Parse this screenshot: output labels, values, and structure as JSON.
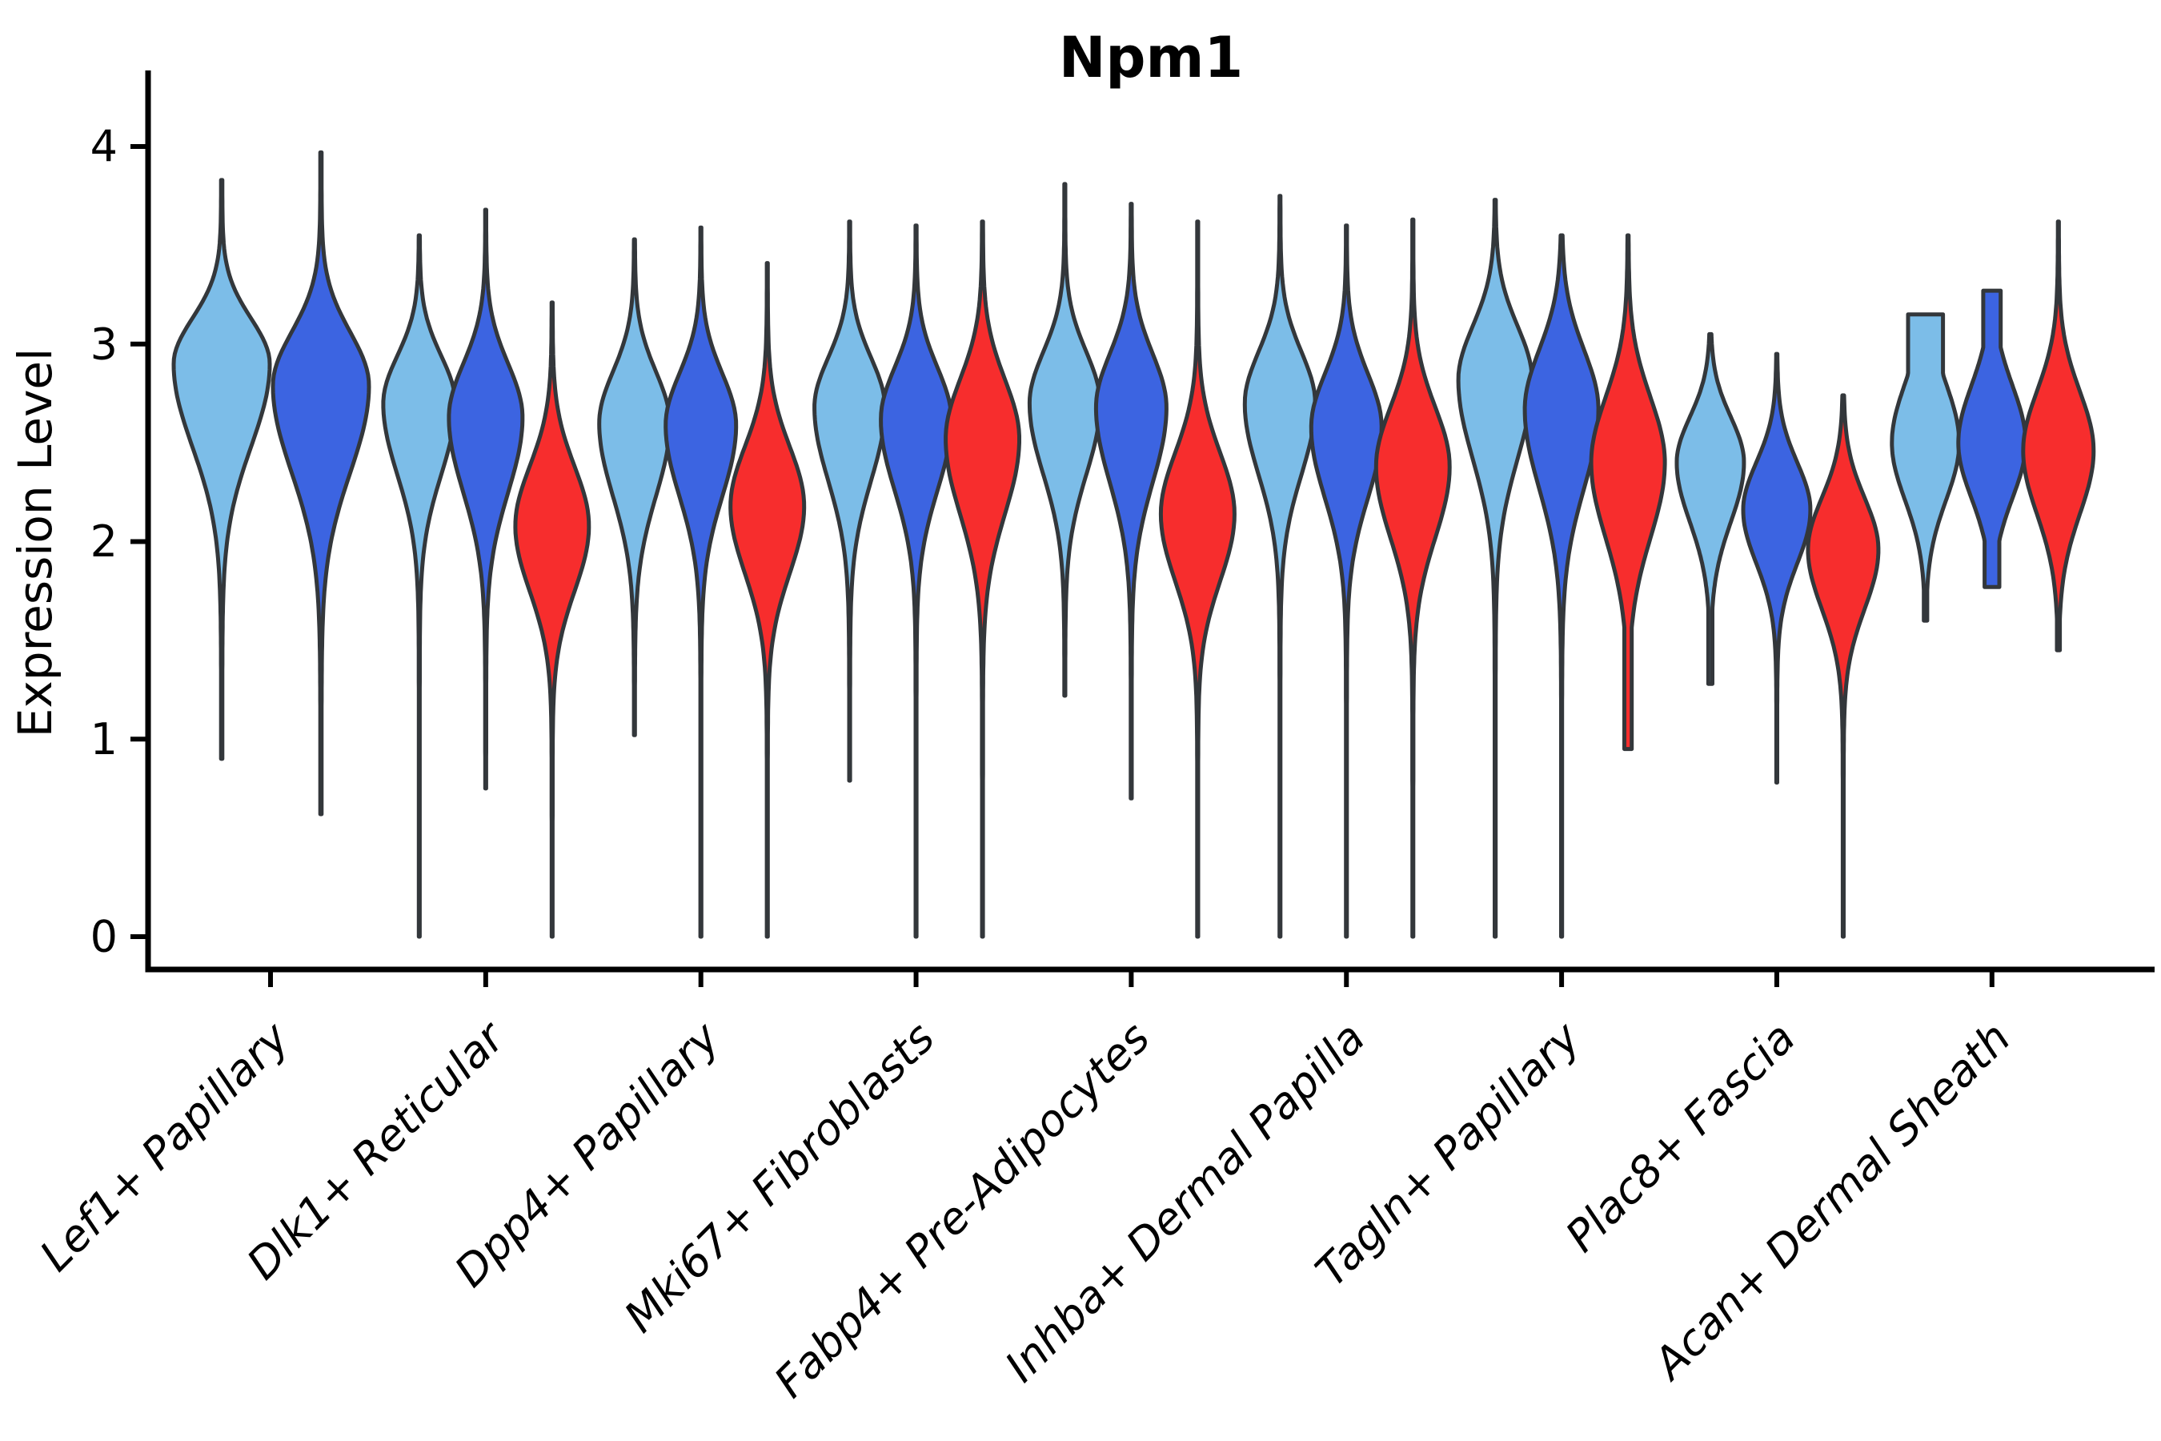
{
  "chart_data": {
    "type": "violin",
    "title": "Npm1",
    "ylabel": "Expression Level",
    "xlabel": "",
    "ylim": [
      0,
      4
    ],
    "y_tick_labels": [
      "0",
      "1",
      "2",
      "3",
      "4"
    ],
    "y_tick_values": [
      0,
      1,
      2,
      3,
      4
    ],
    "categories": [
      "Lef1+ Papillary",
      "Dlk1+ Reticular",
      "Dpp4+ Papillary",
      "Mki67+ Fibroblasts",
      "Fabp4+ Pre-Adipocytes",
      "Inhba+ Dermal Papilla",
      "Tagln+ Papillary",
      "Plac8+ Fascia",
      "Acan+ Dermal Sheath"
    ],
    "series": [
      "light-blue",
      "dark-blue",
      "red"
    ],
    "series_colors": {
      "light-blue": "#7CBDE8",
      "dark-blue": "#3C64E1",
      "red": "#F72D2D"
    },
    "edge_color": "#33373B",
    "axis_color": "#000000",
    "grid": false,
    "legend": "none",
    "x_tick_rotation": 45,
    "violins": [
      {
        "cat": 0,
        "hue": 0,
        "dx": -61,
        "hw": 60,
        "top": 3.83,
        "bottom": 0.9,
        "mode": 2.9,
        "su": 0.23,
        "sd": 0.42
      },
      {
        "cat": 0,
        "hue": 1,
        "dx": 63,
        "hw": 60,
        "top": 3.97,
        "bottom": 0.62,
        "mode": 2.79,
        "su": 0.27,
        "sd": 0.44
      },
      {
        "cat": 1,
        "hue": 0,
        "hw": 45,
        "top": 3.55,
        "bottom": 0.0,
        "mode": 2.7,
        "su": 0.24,
        "sd": 0.36
      },
      {
        "cat": 1,
        "hue": 1,
        "hw": 46,
        "top": 3.68,
        "bottom": 0.75,
        "mode": 2.63,
        "su": 0.27,
        "sd": 0.38
      },
      {
        "cat": 1,
        "hue": 2,
        "hw": 46,
        "top": 3.21,
        "bottom": 0.0,
        "mode": 2.08,
        "su": 0.3,
        "sd": 0.33
      },
      {
        "cat": 2,
        "hue": 0,
        "hw": 44,
        "top": 3.53,
        "bottom": 1.02,
        "mode": 2.6,
        "su": 0.26,
        "sd": 0.37
      },
      {
        "cat": 2,
        "hue": 1,
        "hw": 44,
        "top": 3.59,
        "bottom": 0.0,
        "mode": 2.59,
        "su": 0.26,
        "sd": 0.36
      },
      {
        "cat": 2,
        "hue": 2,
        "hw": 46,
        "top": 3.41,
        "bottom": 0.0,
        "mode": 2.18,
        "su": 0.3,
        "sd": 0.34
      },
      {
        "cat": 3,
        "hue": 0,
        "hw": 44,
        "top": 3.62,
        "bottom": 0.79,
        "mode": 2.68,
        "su": 0.25,
        "sd": 0.37
      },
      {
        "cat": 3,
        "hue": 1,
        "hw": 44,
        "top": 3.6,
        "bottom": 0.0,
        "mode": 2.62,
        "su": 0.26,
        "sd": 0.36
      },
      {
        "cat": 3,
        "hue": 2,
        "hw": 46,
        "top": 3.62,
        "bottom": 0.0,
        "mode": 2.52,
        "su": 0.3,
        "sd": 0.38
      },
      {
        "cat": 4,
        "hue": 0,
        "hw": 44,
        "top": 3.81,
        "bottom": 1.22,
        "mode": 2.7,
        "su": 0.26,
        "sd": 0.36
      },
      {
        "cat": 4,
        "hue": 1,
        "hw": 44,
        "top": 3.71,
        "bottom": 0.7,
        "mode": 2.68,
        "su": 0.27,
        "sd": 0.38
      },
      {
        "cat": 4,
        "hue": 2,
        "hw": 46,
        "top": 3.62,
        "bottom": 0.0,
        "mode": 2.14,
        "su": 0.31,
        "sd": 0.34
      },
      {
        "cat": 5,
        "hue": 0,
        "hw": 44,
        "top": 3.75,
        "bottom": 0.0,
        "mode": 2.7,
        "su": 0.26,
        "sd": 0.36
      },
      {
        "cat": 5,
        "hue": 1,
        "hw": 44,
        "top": 3.6,
        "bottom": 0.0,
        "mode": 2.58,
        "su": 0.27,
        "sd": 0.36
      },
      {
        "cat": 5,
        "hue": 2,
        "hw": 46,
        "top": 3.63,
        "bottom": 0.0,
        "mode": 2.38,
        "su": 0.3,
        "sd": 0.36
      },
      {
        "cat": 6,
        "hue": 0,
        "hw": 46,
        "top": 3.73,
        "bottom": 0.0,
        "mode": 2.82,
        "su": 0.27,
        "sd": 0.4
      },
      {
        "cat": 6,
        "hue": 1,
        "hw": 46,
        "top": 3.55,
        "bottom": 0.0,
        "mode": 2.67,
        "su": 0.3,
        "sd": 0.4
      },
      {
        "cat": 6,
        "hue": 2,
        "hw": 46,
        "top": 3.55,
        "bottom": 0.95,
        "mode": 2.4,
        "su": 0.33,
        "sd": 0.38,
        "botw": 0.1
      },
      {
        "cat": 7,
        "hue": 0,
        "hw": 42,
        "top": 3.05,
        "bottom": 1.28,
        "mode": 2.4,
        "su": 0.23,
        "sd": 0.3,
        "botw": 0.06
      },
      {
        "cat": 7,
        "hue": 1,
        "hw": 42,
        "top": 2.95,
        "bottom": 0.78,
        "mode": 2.16,
        "su": 0.24,
        "sd": 0.27
      },
      {
        "cat": 7,
        "hue": 2,
        "hw": 44,
        "top": 2.74,
        "bottom": 0.0,
        "mode": 1.96,
        "su": 0.26,
        "sd": 0.3
      },
      {
        "cat": 8,
        "hue": 0,
        "hw": 42,
        "top": 3.15,
        "bottom": 1.6,
        "mode": 2.5,
        "su": 0.3,
        "sd": 0.29,
        "topw": 0.52,
        "botw": 0.05
      },
      {
        "cat": 8,
        "hue": 1,
        "hw": 42,
        "top": 3.27,
        "bottom": 1.77,
        "mode": 2.5,
        "su": 0.29,
        "sd": 0.28,
        "topw": 0.26,
        "botw": 0.22
      },
      {
        "cat": 8,
        "hue": 2,
        "hw": 44,
        "top": 3.62,
        "bottom": 1.45,
        "mode": 2.46,
        "su": 0.3,
        "sd": 0.32,
        "botw": 0.04
      }
    ]
  }
}
